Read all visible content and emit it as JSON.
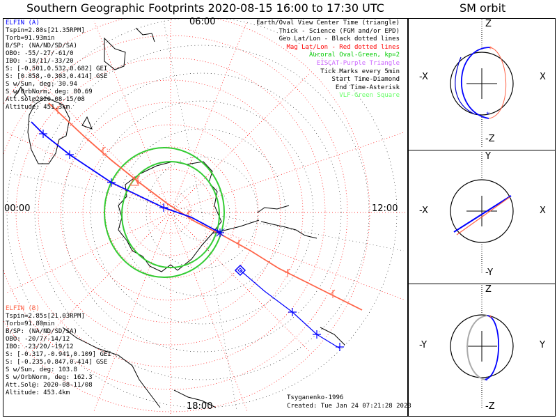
{
  "main_title": "Southern Geographic Footprints 2020-08-15 16:00 to 17:30 UTC",
  "sm_title": "SM orbit",
  "time_labels": {
    "top": "06:00",
    "left": "00:00",
    "right": "12:00",
    "bottom": "18:00"
  },
  "legend": [
    {
      "text": "Earth/Oval View Center Time (triangle)",
      "color": "#000000"
    },
    {
      "text": "Thick - Science (FGM and/or EPD)",
      "color": "#000000"
    },
    {
      "text": "Geo Lat/Lon - Black dotted lines",
      "color": "#000000"
    },
    {
      "text": "Mag Lat/Lon - Red dotted lines",
      "color": "#ff0000"
    },
    {
      "text": "Auroral Oval-Green, kp=2",
      "color": "#00cc00"
    },
    {
      "text": "EISCAT-Purple Triangle",
      "color": "#cc66ff"
    },
    {
      "text": "Tick Marks every 5min",
      "color": "#000000"
    },
    {
      "text": "Start Time-Diamond",
      "color": "#000000"
    },
    {
      "text": "End Time-Asterisk",
      "color": "#000000"
    },
    {
      "text": "VLF-Green Square",
      "color": "#66ff66"
    }
  ],
  "elfin_a": {
    "name": "ELFIN (A)",
    "color": "#0000ff",
    "lines": [
      "Tspin=2.80s[21.35RPM]",
      "Torb=91.93min",
      "B/SP: (NA/ND/SD/SA)",
      "OBO: -55/-27/-61/0",
      "IBO: -18/11/-33/20",
      "S: [-0.501,0.532,0.682] GEI",
      "S: [0.858,-0.303,0.414] GSE",
      "S w/Sun, deg: 30.94",
      "S w/OrbNorm, deg: 80.69",
      "Att.Sol@2020-08-15/08",
      "Altitude: 451.3km"
    ]
  },
  "elfin_b": {
    "name": "ELFIN (B)",
    "color": "#ff6347",
    "lines": [
      "Tspin=2.85s[21.03RPM]",
      "Torb=91.80min",
      "B/SP: (NA/ND/SD/SA)",
      "OBO: -20/7/-14/12",
      "IBO: -23/20/-19/12",
      "S: [-0.317,-0.941,0.109] GEI",
      "S: [-0.235,0.847,0.414] GSE",
      "S w/Sun, deg: 103.8",
      "S w/OrbNorm, deg: 162.3",
      "Att.Sol@: 2020-08-11/08",
      "Altitude: 453.4km"
    ]
  },
  "footer": {
    "model": "Tsyganenko-1996",
    "created": "Created: Tue Jan 24 07:21:28 2023"
  },
  "sm_panels": [
    {
      "top": "Z",
      "bottom": "-Z",
      "left": "-X",
      "right": "X"
    },
    {
      "top": "Y",
      "bottom": "-Y",
      "left": "-X",
      "right": "X"
    },
    {
      "top": "Z",
      "bottom": "-Z",
      "left": "-Y",
      "right": "Y"
    }
  ],
  "colors": {
    "elfin_a": "#0000ff",
    "elfin_b": "#ff6347",
    "oval": "#33cc33",
    "grid_mag": "#ff0000"
  }
}
